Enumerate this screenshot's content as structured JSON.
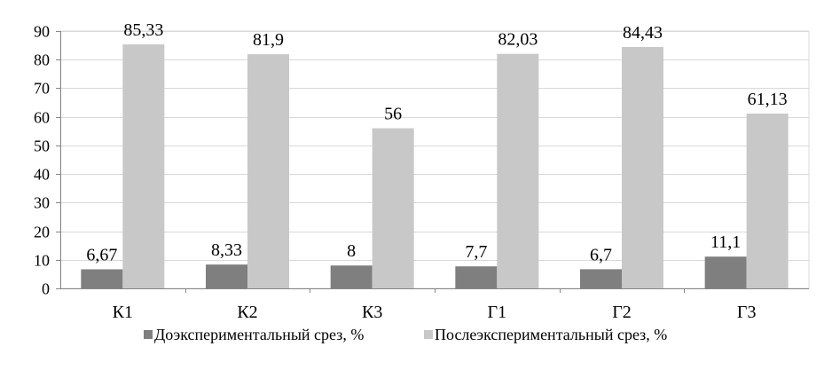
{
  "chart_data": {
    "type": "bar",
    "categories": [
      "К1",
      "К2",
      "К3",
      "Г1",
      "Г2",
      "Г3"
    ],
    "series": [
      {
        "name": "Доэкспериментальный срез, %",
        "values": [
          6.67,
          8.33,
          8,
          7.7,
          6.7,
          11.1
        ],
        "labels": [
          "6,67",
          "8,33",
          "8",
          "7,7",
          "6,7",
          "11,1"
        ],
        "color": "#7f7f7f"
      },
      {
        "name": "Послеэкспериментальный срез, %",
        "values": [
          85.33,
          81.9,
          56,
          82.03,
          84.43,
          61.13
        ],
        "labels": [
          "85,33",
          "81,9",
          "56",
          "82,03",
          "84,43",
          "61,13"
        ],
        "color": "#c8c8c8"
      }
    ],
    "ylim": [
      0,
      90
    ],
    "yticks": [
      "0",
      "10",
      "20",
      "30",
      "40",
      "50",
      "60",
      "70",
      "80",
      "90"
    ],
    "grid": true,
    "legend_position": "bottom"
  }
}
